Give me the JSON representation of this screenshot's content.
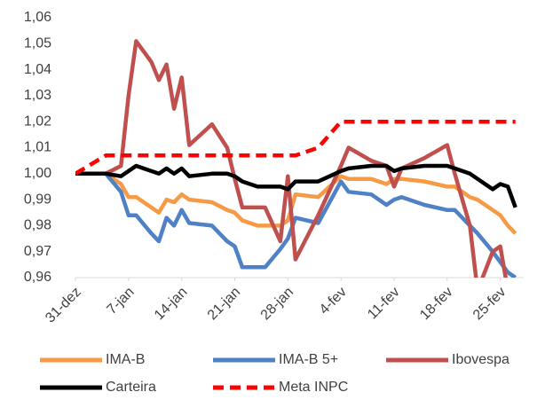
{
  "chart_data": {
    "type": "line",
    "x": [
      0,
      4,
      6,
      7,
      8,
      10,
      11,
      12,
      13,
      14,
      15,
      18,
      20,
      21,
      22,
      24,
      25,
      27,
      28,
      29,
      32,
      35,
      36,
      39,
      41,
      42,
      43,
      46,
      49,
      50,
      52,
      53,
      55,
      56,
      57,
      58
    ],
    "xlim": [
      0,
      58.5
    ],
    "xticks": [
      {
        "value": 0,
        "label": "31-dez"
      },
      {
        "value": 7,
        "label": "7-jan"
      },
      {
        "value": 14,
        "label": "14-jan"
      },
      {
        "value": 21,
        "label": "21-jan"
      },
      {
        "value": 28,
        "label": "28-jan"
      },
      {
        "value": 35,
        "label": "4-fev"
      },
      {
        "value": 42,
        "label": "11-fev"
      },
      {
        "value": 49,
        "label": "18-fev"
      },
      {
        "value": 56,
        "label": "25-fev"
      }
    ],
    "ylim": [
      0.96,
      1.06
    ],
    "yticks": [
      {
        "value": 0.96,
        "label": "0,96"
      },
      {
        "value": 0.97,
        "label": "0,97"
      },
      {
        "value": 0.98,
        "label": "0,98"
      },
      {
        "value": 0.99,
        "label": "0,99"
      },
      {
        "value": 1.0,
        "label": "1,00"
      },
      {
        "value": 1.01,
        "label": "1,01"
      },
      {
        "value": 1.02,
        "label": "1,02"
      },
      {
        "value": 1.03,
        "label": "1,03"
      },
      {
        "value": 1.04,
        "label": "1,04"
      },
      {
        "value": 1.05,
        "label": "1,05"
      },
      {
        "value": 1.06,
        "label": "1,06"
      }
    ],
    "grid": false,
    "legend": "bottom",
    "series": [
      {
        "name": "IMA-B",
        "color": "#f79a46",
        "values": [
          1.0,
          1.0,
          0.996,
          0.991,
          0.991,
          0.987,
          0.985,
          0.99,
          0.989,
          0.992,
          0.99,
          0.989,
          0.986,
          0.985,
          0.982,
          0.98,
          0.98,
          0.98,
          0.982,
          0.992,
          0.991,
          0.999,
          0.998,
          0.998,
          0.996,
          0.998,
          0.998,
          0.997,
          0.995,
          0.995,
          0.991,
          0.99,
          0.986,
          0.984,
          0.98,
          0.977
        ]
      },
      {
        "name": "IMA-B 5+",
        "color": "#4f81c7",
        "values": [
          1.0,
          1.0,
          0.993,
          0.984,
          0.984,
          0.977,
          0.974,
          0.983,
          0.98,
          0.986,
          0.981,
          0.98,
          0.974,
          0.972,
          0.964,
          0.964,
          0.964,
          0.971,
          0.975,
          0.983,
          0.981,
          0.997,
          0.993,
          0.992,
          0.988,
          0.99,
          0.991,
          0.988,
          0.986,
          0.986,
          0.98,
          0.977,
          0.97,
          0.966,
          0.962,
          0.96
        ]
      },
      {
        "name": "Ibovespa",
        "color": "#c0504d",
        "values": [
          1.0,
          1.0,
          1.003,
          1.03,
          1.051,
          1.043,
          1.036,
          1.042,
          1.025,
          1.037,
          1.011,
          1.019,
          1.01,
          0.998,
          0.987,
          0.987,
          0.987,
          0.974,
          0.999,
          0.967,
          0.984,
          1.003,
          1.01,
          1.005,
          1.003,
          0.995,
          1.002,
          1.006,
          1.011,
          1.0,
          0.98,
          0.955,
          0.97,
          0.972,
          0.955,
          0.955
        ]
      },
      {
        "name": "Carteira",
        "color": "#000000",
        "values": [
          1.0,
          1.0,
          0.999,
          1.001,
          1.003,
          1.001,
          1.0,
          1.002,
          1.0,
          1.002,
          0.999,
          1.0,
          1.0,
          0.999,
          0.997,
          0.995,
          0.995,
          0.995,
          0.994,
          0.997,
          0.997,
          1.001,
          1.002,
          1.003,
          1.003,
          1.001,
          1.002,
          1.003,
          1.003,
          1.002,
          1.0,
          0.998,
          0.994,
          0.996,
          0.995,
          0.987
        ]
      },
      {
        "name": "Meta INPC",
        "color": "#ff0000",
        "line_style": "dashed",
        "values": [
          1.0,
          1.007,
          1.007,
          1.007,
          1.007,
          1.007,
          1.007,
          1.007,
          1.007,
          1.007,
          1.007,
          1.007,
          1.007,
          1.007,
          1.007,
          1.007,
          1.007,
          1.007,
          1.007,
          1.007,
          1.01,
          1.02,
          1.02,
          1.02,
          1.02,
          1.02,
          1.02,
          1.02,
          1.02,
          1.02,
          1.02,
          1.02,
          1.02,
          1.02,
          1.02,
          1.02
        ]
      }
    ]
  }
}
